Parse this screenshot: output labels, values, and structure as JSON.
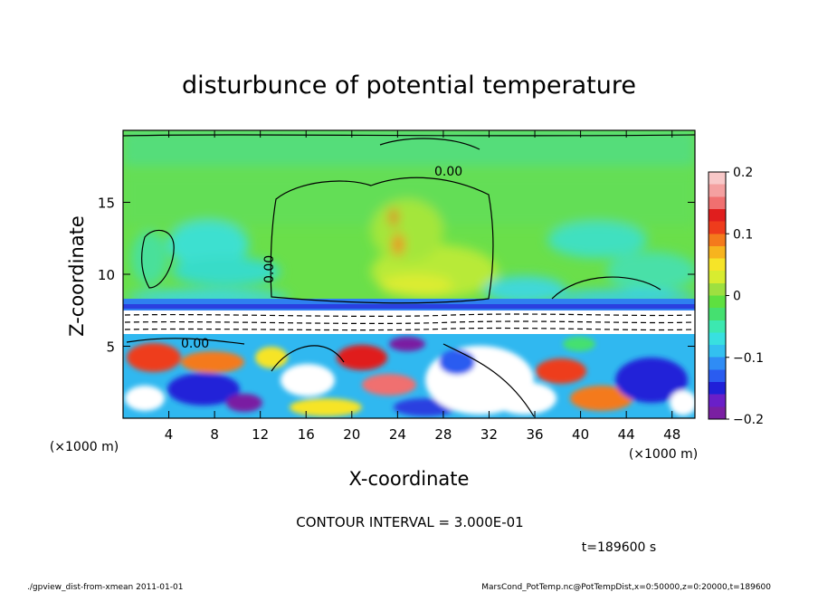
{
  "chart_data": {
    "type": "heatmap",
    "title": "disturbunce of potential temperature",
    "xlabel": "X-coordinate",
    "ylabel": "Z-coordinate",
    "x_unit_label": "(×1000 m)",
    "y_unit_label": "(×1000 m)",
    "xlim": [
      0,
      50
    ],
    "ylim": [
      0,
      20
    ],
    "x_ticks": [
      "4",
      "8",
      "12",
      "16",
      "20",
      "24",
      "28",
      "32",
      "36",
      "40",
      "44",
      "48"
    ],
    "x_tick_values": [
      4,
      8,
      12,
      16,
      20,
      24,
      28,
      32,
      36,
      40,
      44,
      48
    ],
    "y_ticks": [
      "5",
      "10",
      "15"
    ],
    "y_tick_values": [
      5,
      10,
      15
    ],
    "colorbar": {
      "range": [
        -0.2,
        0.2
      ],
      "tick_labels": [
        "0.2",
        "0.1",
        "0",
        "−0.1",
        "−0.2"
      ],
      "tick_values": [
        0.2,
        0.1,
        0,
        -0.1,
        -0.2
      ],
      "colors": [
        "#7a1fa2",
        "#6a1fc8",
        "#2020d8",
        "#2a5cf0",
        "#2f8cf5",
        "#33c0f0",
        "#38e0e0",
        "#3ce8b0",
        "#45e070",
        "#5ee040",
        "#9ee040",
        "#d8ec30",
        "#f6e428",
        "#f7b41e",
        "#f47a1c",
        "#ee3c1c",
        "#e01e1e",
        "#f07070",
        "#f4a0a0",
        "#f8c8c8"
      ]
    },
    "contour_labels": [
      "0.00",
      "0.00",
      "0.00"
    ],
    "contour_interval_label": "CONTOUR INTERVAL = 3.000E-01",
    "time_label": "t=189600 s"
  },
  "footer": {
    "left": "./gpview_dist-from-xmean  2011-01-01",
    "right": "MarsCond_PotTemp.nc@PotTempDist,x=0:50000,z=0:20000,t=189600"
  }
}
